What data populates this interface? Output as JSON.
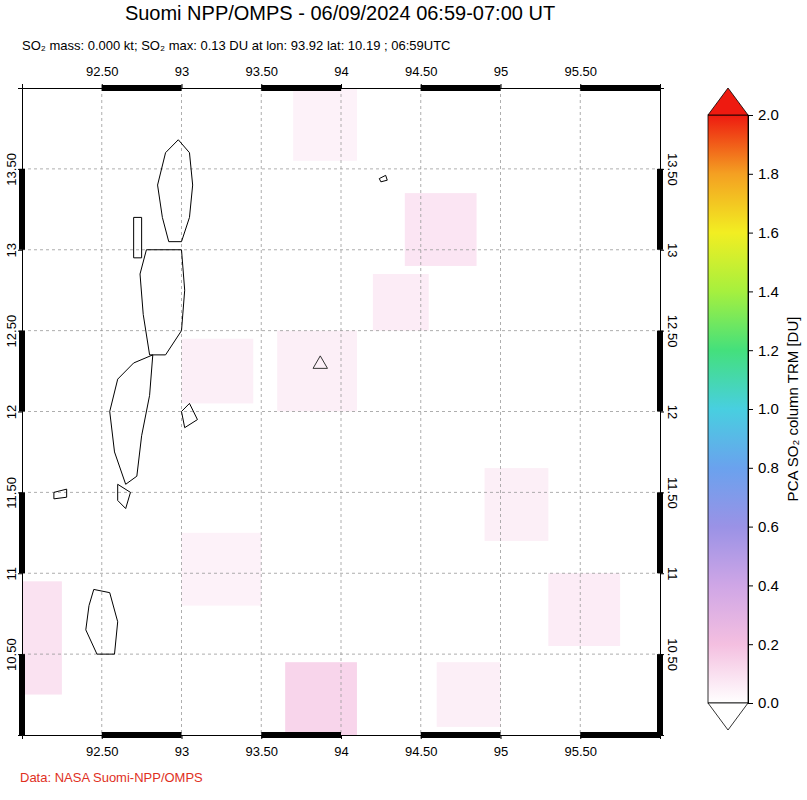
{
  "chart_data": {
    "type": "map",
    "title": "Suomi NPP/OMPS - 06/09/2024 06:59-07:00 UT",
    "subtitle": "SO₂ mass: 0.000 kt; SO₂ max: 0.13 DU at lon: 93.92 lat: 10.19 ; 06:59UTC",
    "source": "Data: NASA Suomi-NPP/OMPS",
    "xlim": [
      92,
      96
    ],
    "ylim": [
      10,
      14
    ],
    "xticks": [
      {
        "value": 92.5,
        "label": "92.50"
      },
      93,
      {
        "value": 93.5,
        "label": "93.50"
      },
      94,
      {
        "value": 94.5,
        "label": "94.50"
      },
      95,
      {
        "value": 95.5,
        "label": "95.50"
      }
    ],
    "yticks": [
      {
        "value": 10.5,
        "label": "10.50"
      },
      11,
      {
        "value": 11.5,
        "label": "11.50"
      },
      12,
      {
        "value": 12.5,
        "label": "12.50"
      },
      13,
      {
        "value": 13.5,
        "label": "13.50"
      }
    ],
    "grid": true,
    "colorbar": {
      "label": "PCA SO₂ column TRM [DU]",
      "range": [
        0,
        2
      ],
      "ticks": [
        {
          "value": 0,
          "label": "0.0"
        },
        {
          "value": 0.2,
          "label": "0.2"
        },
        {
          "value": 0.4,
          "label": "0.4"
        },
        {
          "value": 0.6,
          "label": "0.6"
        },
        {
          "value": 0.8,
          "label": "0.8"
        },
        {
          "value": 1,
          "label": "1.0"
        },
        {
          "value": 1.2,
          "label": "1.2"
        },
        {
          "value": 1.4,
          "label": "1.4"
        },
        {
          "value": 1.6,
          "label": "1.6"
        },
        {
          "value": 1.8,
          "label": "1.8"
        },
        {
          "value": 2,
          "label": "2.0"
        }
      ],
      "colors": [
        "#ffffff",
        "#f4bfe0",
        "#cfa6e6",
        "#9a92e6",
        "#6aa2ee",
        "#48cfe0",
        "#44e07c",
        "#a6f03e",
        "#f2ee22",
        "#f4a022",
        "#ee1a10"
      ]
    },
    "cells": [
      [
        94.4,
        94.85,
        12.9,
        13.35,
        0.08
      ],
      [
        94.2,
        94.55,
        12.5,
        12.85,
        0.06
      ],
      [
        93.6,
        94.1,
        12.0,
        12.5,
        0.05
      ],
      [
        93.0,
        93.45,
        12.05,
        12.45,
        0.05
      ],
      [
        93.65,
        94.1,
        10.0,
        10.45,
        0.13
      ],
      [
        92.0,
        92.25,
        10.25,
        10.95,
        0.09
      ],
      [
        93.0,
        93.5,
        10.8,
        11.25,
        0.04
      ],
      [
        95.3,
        95.75,
        10.55,
        11.0,
        0.06
      ],
      [
        94.9,
        95.3,
        11.2,
        11.65,
        0.05
      ],
      [
        94.6,
        95.0,
        10.05,
        10.45,
        0.05
      ],
      [
        93.7,
        94.1,
        13.55,
        14.0,
        0.04
      ]
    ],
    "coastlines": [
      [
        [
          92.98,
          13.68
        ],
        [
          93.05,
          13.6
        ],
        [
          93.07,
          13.4
        ],
        [
          93.05,
          13.2
        ],
        [
          93.0,
          13.05
        ],
        [
          92.92,
          13.05
        ],
        [
          92.88,
          13.2
        ],
        [
          92.85,
          13.4
        ],
        [
          92.9,
          13.6
        ]
      ],
      [
        [
          92.7,
          12.95
        ],
        [
          92.75,
          12.95
        ],
        [
          92.75,
          13.2
        ],
        [
          92.7,
          13.2
        ]
      ],
      [
        [
          92.78,
          13.0
        ],
        [
          93.0,
          13.0
        ],
        [
          93.02,
          12.75
        ],
        [
          93.0,
          12.5
        ],
        [
          92.9,
          12.35
        ],
        [
          92.8,
          12.35
        ],
        [
          92.76,
          12.6
        ],
        [
          92.74,
          12.85
        ]
      ],
      [
        [
          93.0,
          12.0
        ],
        [
          93.05,
          12.05
        ],
        [
          93.1,
          11.95
        ],
        [
          93.02,
          11.9
        ]
      ],
      [
        [
          92.7,
          12.3
        ],
        [
          92.82,
          12.35
        ],
        [
          92.8,
          12.1
        ],
        [
          92.75,
          11.85
        ],
        [
          92.72,
          11.6
        ],
        [
          92.65,
          11.55
        ],
        [
          92.58,
          11.75
        ],
        [
          92.55,
          12.0
        ],
        [
          92.6,
          12.2
        ]
      ],
      [
        [
          92.6,
          11.55
        ],
        [
          92.68,
          11.5
        ],
        [
          92.65,
          11.4
        ],
        [
          92.6,
          11.45
        ]
      ],
      [
        [
          92.45,
          10.9
        ],
        [
          92.55,
          10.88
        ],
        [
          92.6,
          10.7
        ],
        [
          92.58,
          10.5
        ],
        [
          92.47,
          10.5
        ],
        [
          92.4,
          10.65
        ],
        [
          92.42,
          10.8
        ]
      ],
      [
        [
          94.24,
          13.44
        ],
        [
          94.28,
          13.46
        ],
        [
          94.29,
          13.43
        ],
        [
          94.25,
          13.42
        ]
      ],
      [
        [
          92.2,
          11.5
        ],
        [
          92.28,
          11.52
        ],
        [
          92.28,
          11.47
        ],
        [
          92.2,
          11.46
        ]
      ]
    ],
    "volcano": [
      93.87,
      12.28
    ]
  }
}
